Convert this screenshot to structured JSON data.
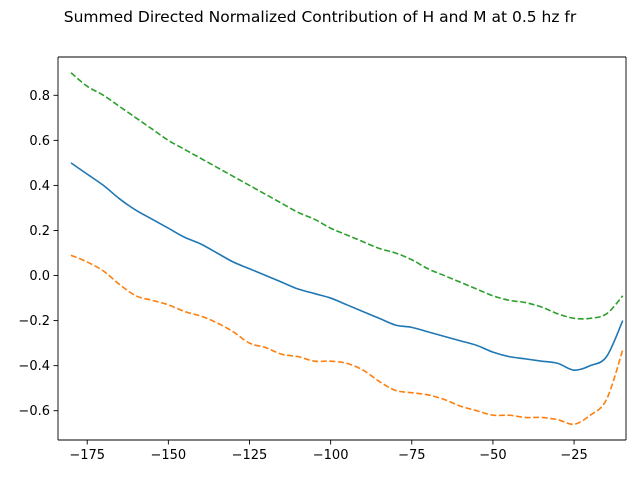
{
  "chart_data": {
    "type": "line",
    "title": "Summed Directed Normalized Contribution of H and M at 0.5 hz fr",
    "xlabel": "",
    "ylabel": "",
    "xlim": [
      -184,
      -9
    ],
    "ylim": [
      -0.73,
      0.97
    ],
    "xticks": [
      -175,
      -150,
      -125,
      -100,
      -75,
      -50,
      -25
    ],
    "yticks": [
      -0.6,
      -0.4,
      -0.2,
      0.0,
      0.2,
      0.4,
      0.6,
      0.8
    ],
    "xtick_labels": [
      "−175",
      "−150",
      "−125",
      "−100",
      "−75",
      "−50",
      "−25"
    ],
    "ytick_labels": [
      "−0.6",
      "−0.4",
      "−0.2",
      "0.0",
      "0.2",
      "0.4",
      "0.6",
      "0.8"
    ],
    "grid": false,
    "x": [
      -180,
      -175,
      -170,
      -165,
      -160,
      -155,
      -150,
      -145,
      -140,
      -135,
      -130,
      -125,
      -120,
      -115,
      -110,
      -105,
      -100,
      -95,
      -90,
      -85,
      -80,
      -75,
      -70,
      -65,
      -60,
      -55,
      -50,
      -45,
      -40,
      -35,
      -30,
      -25,
      -20,
      -15,
      -10
    ],
    "series": [
      {
        "color": "#1f77b4",
        "style": "solid",
        "values": [
          0.5,
          0.45,
          0.4,
          0.34,
          0.29,
          0.25,
          0.21,
          0.17,
          0.14,
          0.1,
          0.06,
          0.03,
          0.0,
          -0.03,
          -0.06,
          -0.08,
          -0.1,
          -0.13,
          -0.16,
          -0.19,
          -0.22,
          -0.23,
          -0.25,
          -0.27,
          -0.29,
          -0.31,
          -0.34,
          -0.36,
          -0.37,
          -0.38,
          -0.39,
          -0.42,
          -0.4,
          -0.36,
          -0.2
        ]
      },
      {
        "color": "#ff7f0e",
        "style": "dashed",
        "values": [
          0.09,
          0.06,
          0.02,
          -0.04,
          -0.09,
          -0.11,
          -0.13,
          -0.16,
          -0.18,
          -0.21,
          -0.25,
          -0.3,
          -0.32,
          -0.35,
          -0.36,
          -0.38,
          -0.38,
          -0.39,
          -0.42,
          -0.47,
          -0.51,
          -0.52,
          -0.53,
          -0.55,
          -0.58,
          -0.6,
          -0.62,
          -0.62,
          -0.63,
          -0.63,
          -0.64,
          -0.66,
          -0.62,
          -0.55,
          -0.33
        ]
      },
      {
        "color": "#2ca02c",
        "style": "dashed",
        "values": [
          0.9,
          0.84,
          0.8,
          0.75,
          0.7,
          0.65,
          0.6,
          0.56,
          0.52,
          0.48,
          0.44,
          0.4,
          0.36,
          0.32,
          0.28,
          0.25,
          0.21,
          0.18,
          0.15,
          0.12,
          0.1,
          0.07,
          0.03,
          0.0,
          -0.03,
          -0.06,
          -0.09,
          -0.11,
          -0.12,
          -0.14,
          -0.17,
          -0.19,
          -0.19,
          -0.17,
          -0.09
        ]
      }
    ]
  }
}
